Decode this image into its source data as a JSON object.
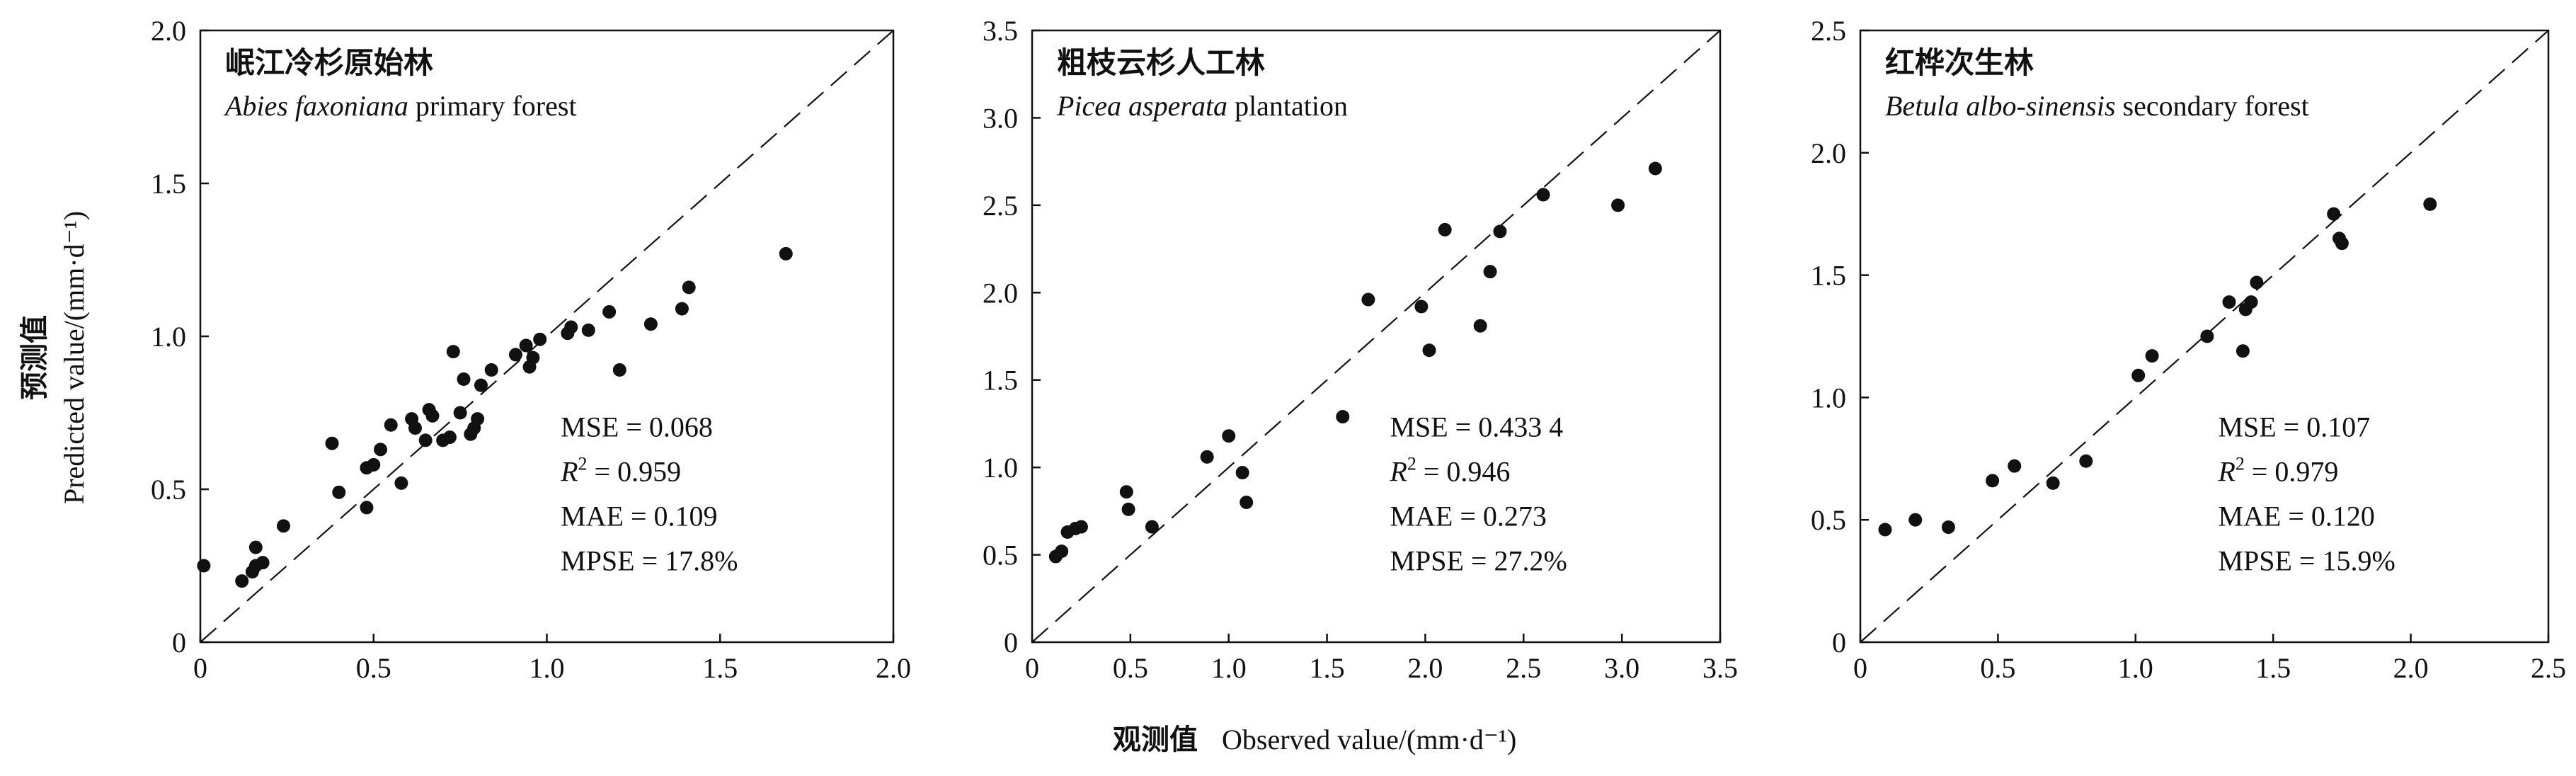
{
  "figure": {
    "y_label_cn": "预测值",
    "y_label_en": "Predicted value/(mm·d⁻¹)",
    "x_label_cn": "观测值",
    "x_label_en": "Observed value/(mm·d⁻¹)"
  },
  "chart_data": [
    {
      "type": "scatter",
      "title_cn": "岷江冷杉原始林",
      "title_en_italic": "Abies faxoniana",
      "title_en_rest": " primary forest",
      "xlim": [
        0,
        2.0
      ],
      "ylim": [
        0,
        2.0
      ],
      "xticks": [
        "0",
        "0.5",
        "1.0",
        "1.5",
        "2.0"
      ],
      "yticks": [
        "0",
        "0.5",
        "1.0",
        "1.5",
        "2.0"
      ],
      "xtick_values": [
        0,
        0.5,
        1.0,
        1.5,
        2.0
      ],
      "ytick_values": [
        0,
        0.5,
        1.0,
        1.5,
        2.0
      ],
      "reference_line": "1:1 dashed",
      "stats": {
        "mse": "MSE = 0.068",
        "r2_value": " = 0.959",
        "mae": "MAE = 0.109",
        "mpse": "MPSE = 17.8%"
      },
      "points": [
        [
          0.01,
          0.25
        ],
        [
          0.12,
          0.2
        ],
        [
          0.15,
          0.23
        ],
        [
          0.16,
          0.31
        ],
        [
          0.16,
          0.25
        ],
        [
          0.18,
          0.26
        ],
        [
          0.24,
          0.38
        ],
        [
          0.38,
          0.65
        ],
        [
          0.4,
          0.49
        ],
        [
          0.48,
          0.44
        ],
        [
          0.48,
          0.57
        ],
        [
          0.5,
          0.58
        ],
        [
          0.52,
          0.63
        ],
        [
          0.55,
          0.71
        ],
        [
          0.58,
          0.52
        ],
        [
          0.61,
          0.73
        ],
        [
          0.62,
          0.7
        ],
        [
          0.65,
          0.66
        ],
        [
          0.66,
          0.76
        ],
        [
          0.67,
          0.74
        ],
        [
          0.7,
          0.66
        ],
        [
          0.72,
          0.67
        ],
        [
          0.73,
          0.95
        ],
        [
          0.75,
          0.75
        ],
        [
          0.76,
          0.86
        ],
        [
          0.78,
          0.68
        ],
        [
          0.79,
          0.7
        ],
        [
          0.8,
          0.73
        ],
        [
          0.81,
          0.84
        ],
        [
          0.84,
          0.89
        ],
        [
          0.91,
          0.94
        ],
        [
          0.94,
          0.97
        ],
        [
          0.95,
          0.9
        ],
        [
          0.96,
          0.93
        ],
        [
          0.98,
          0.99
        ],
        [
          1.06,
          1.01
        ],
        [
          1.07,
          1.03
        ],
        [
          1.12,
          1.02
        ],
        [
          1.18,
          1.08
        ],
        [
          1.21,
          0.89
        ],
        [
          1.3,
          1.04
        ],
        [
          1.39,
          1.09
        ],
        [
          1.41,
          1.16
        ],
        [
          1.69,
          1.27
        ]
      ]
    },
    {
      "type": "scatter",
      "title_cn": "粗枝云杉人工林",
      "title_en_italic": "Picea asperata",
      "title_en_rest": " plantation",
      "xlim": [
        0,
        3.5
      ],
      "ylim": [
        0,
        3.5
      ],
      "xticks": [
        "0",
        "0.5",
        "1.0",
        "1.5",
        "2.0",
        "2.5",
        "3.0",
        "3.5"
      ],
      "yticks": [
        "0",
        "0.5",
        "1.0",
        "1.5",
        "2.0",
        "2.5",
        "3.0",
        "3.5"
      ],
      "xtick_values": [
        0,
        0.5,
        1.0,
        1.5,
        2.0,
        2.5,
        3.0,
        3.5
      ],
      "ytick_values": [
        0,
        0.5,
        1.0,
        1.5,
        2.0,
        2.5,
        3.0,
        3.5
      ],
      "reference_line": "1:1 dashed",
      "stats": {
        "mse": "MSE = 0.433 4",
        "r2_value": " = 0.946",
        "mae": "MAE = 0.273",
        "mpse": "MPSE = 27.2%"
      },
      "points": [
        [
          0.12,
          0.49
        ],
        [
          0.15,
          0.52
        ],
        [
          0.18,
          0.63
        ],
        [
          0.22,
          0.65
        ],
        [
          0.25,
          0.66
        ],
        [
          0.48,
          0.86
        ],
        [
          0.49,
          0.76
        ],
        [
          0.61,
          0.66
        ],
        [
          0.89,
          1.06
        ],
        [
          1.0,
          1.18
        ],
        [
          1.07,
          0.97
        ],
        [
          1.09,
          0.8
        ],
        [
          1.58,
          1.29
        ],
        [
          1.71,
          1.96
        ],
        [
          1.98,
          1.92
        ],
        [
          2.02,
          1.67
        ],
        [
          2.1,
          2.36
        ],
        [
          2.28,
          1.81
        ],
        [
          2.33,
          2.12
        ],
        [
          2.38,
          2.35
        ],
        [
          2.6,
          2.56
        ],
        [
          2.98,
          2.5
        ],
        [
          3.17,
          2.71
        ]
      ]
    },
    {
      "type": "scatter",
      "title_cn": "红桦次生林",
      "title_en_italic": "Betula albo-sinensis",
      "title_en_rest": " secondary forest",
      "xlim": [
        0,
        2.5
      ],
      "ylim": [
        0,
        2.5
      ],
      "xticks": [
        "0",
        "0.5",
        "1.0",
        "1.5",
        "2.0",
        "2.5"
      ],
      "yticks": [
        "0",
        "0.5",
        "1.0",
        "1.5",
        "2.0",
        "2.5"
      ],
      "xtick_values": [
        0,
        0.5,
        1.0,
        1.5,
        2.0,
        2.5
      ],
      "ytick_values": [
        0,
        0.5,
        1.0,
        1.5,
        2.0,
        2.5
      ],
      "reference_line": "1:1 dashed",
      "stats": {
        "mse": "MSE = 0.107",
        "r2_value": " = 0.979",
        "mae": "MAE = 0.120",
        "mpse": "MPSE = 15.9%"
      },
      "points": [
        [
          0.09,
          0.46
        ],
        [
          0.2,
          0.5
        ],
        [
          0.32,
          0.47
        ],
        [
          0.48,
          0.66
        ],
        [
          0.56,
          0.72
        ],
        [
          0.7,
          0.65
        ],
        [
          0.82,
          0.74
        ],
        [
          1.01,
          1.09
        ],
        [
          1.06,
          1.17
        ],
        [
          1.26,
          1.25
        ],
        [
          1.34,
          1.39
        ],
        [
          1.39,
          1.19
        ],
        [
          1.4,
          1.36
        ],
        [
          1.42,
          1.39
        ],
        [
          1.44,
          1.47
        ],
        [
          1.72,
          1.75
        ],
        [
          1.74,
          1.65
        ],
        [
          1.75,
          1.63
        ],
        [
          2.07,
          1.79
        ]
      ]
    }
  ]
}
